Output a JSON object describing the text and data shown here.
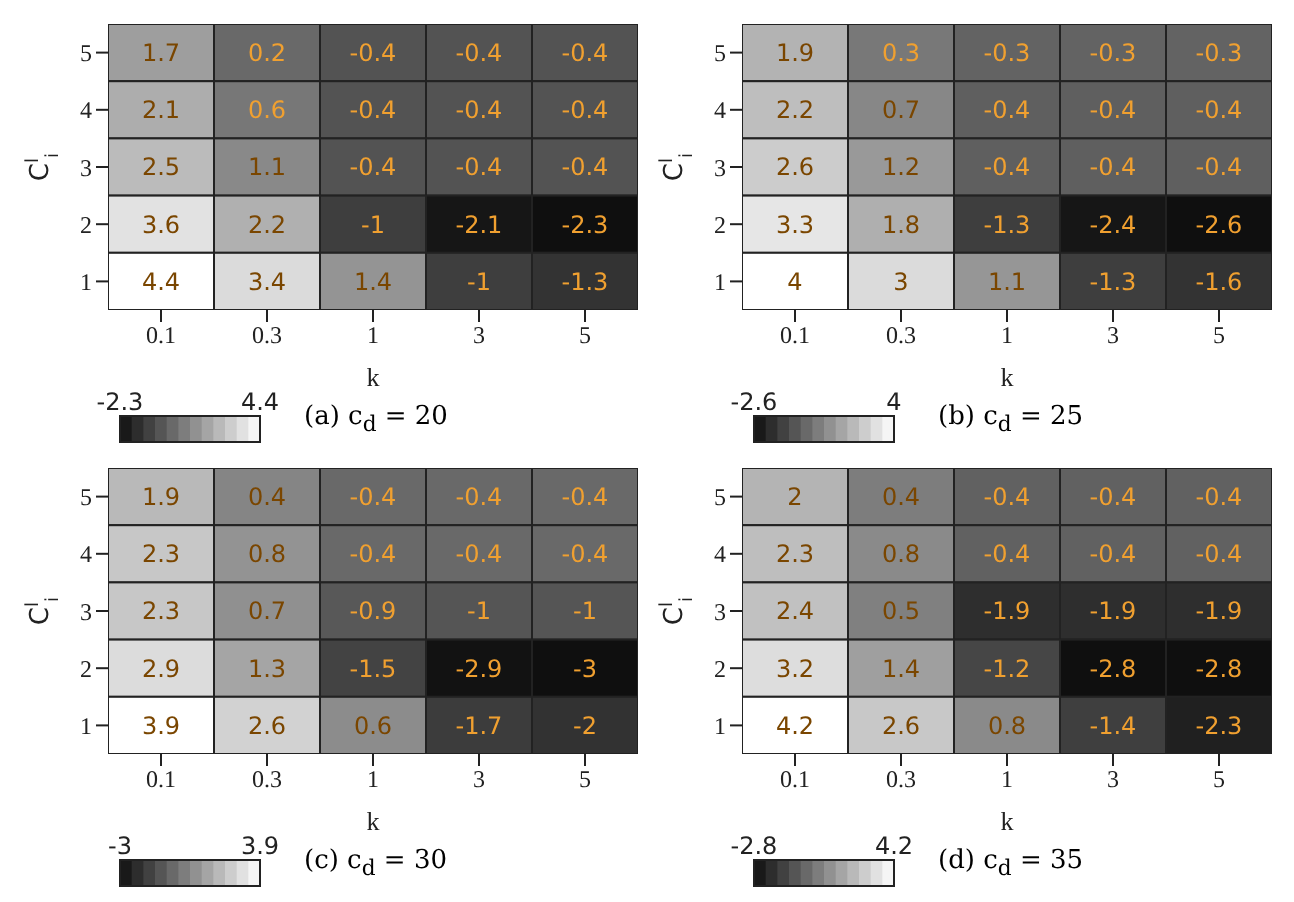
{
  "chart_data": [
    {
      "type": "heatmap",
      "title": "(a) c$_{d}$ = 20",
      "xlabel": "k",
      "ylabel": "C$^{l}$$_{i}$",
      "categories": [
        "0.1",
        "0.3",
        "1",
        "3",
        "5"
      ],
      "y_categories": [
        "5",
        "4",
        "3",
        "2",
        "1"
      ],
      "data_labels": true,
      "clim": [
        -2.3,
        4.4
      ],
      "cticks": [
        -2.3,
        4.4
      ],
      "cells": [
        [
          1.7,
          0.2,
          -0.4,
          -0.4,
          -0.4
        ],
        [
          2.1,
          0.6,
          -0.4,
          -0.4,
          -0.4
        ],
        [
          2.5,
          1.1,
          -0.4,
          -0.4,
          -0.4
        ],
        [
          3.6,
          2.2,
          -1,
          -2.1,
          -2.3
        ],
        [
          4.4,
          3.4,
          1.4,
          -1,
          -1.3
        ]
      ]
    },
    {
      "type": "heatmap",
      "title": "(b) c$_{d}$ = 25",
      "xlabel": "k",
      "ylabel": "C$^{l}$$_{i}$",
      "categories": [
        "0.1",
        "0.3",
        "1",
        "3",
        "5"
      ],
      "y_categories": [
        "5",
        "4",
        "3",
        "2",
        "1"
      ],
      "data_labels": true,
      "clim": [
        -2.6,
        4
      ],
      "cticks": [
        -2.6,
        4
      ],
      "cells": [
        [
          1.9,
          0.3,
          -0.3,
          -0.3,
          -0.3
        ],
        [
          2.2,
          0.7,
          -0.4,
          -0.4,
          -0.4
        ],
        [
          2.6,
          1.2,
          -0.4,
          -0.4,
          -0.4
        ],
        [
          3.3,
          1.8,
          -1.3,
          -2.4,
          -2.6
        ],
        [
          4,
          3,
          1.1,
          -1.3,
          -1.6
        ]
      ]
    },
    {
      "type": "heatmap",
      "title": "(c) c$_{d}$ = 30",
      "xlabel": "k",
      "ylabel": "C$^{l}$$_{i}$",
      "categories": [
        "0.1",
        "0.3",
        "1",
        "3",
        "5"
      ],
      "y_categories": [
        "5",
        "4",
        "3",
        "2",
        "1"
      ],
      "data_labels": true,
      "clim": [
        -3,
        3.9
      ],
      "cticks": [
        -3,
        3.9
      ],
      "cells": [
        [
          1.9,
          0.4,
          -0.4,
          -0.4,
          -0.4
        ],
        [
          2.3,
          0.8,
          -0.4,
          -0.4,
          -0.4
        ],
        [
          2.3,
          0.7,
          -0.9,
          -1,
          -1
        ],
        [
          2.9,
          1.3,
          -1.5,
          -2.9,
          -3
        ],
        [
          3.9,
          2.6,
          0.6,
          -1.7,
          -2
        ]
      ]
    },
    {
      "type": "heatmap",
      "title": "(d) c$_{d}$ = 35",
      "xlabel": "k",
      "ylabel": "C$^{l}$$_{i}$",
      "categories": [
        "0.1",
        "0.3",
        "1",
        "3",
        "5"
      ],
      "y_categories": [
        "5",
        "4",
        "3",
        "2",
        "1"
      ],
      "data_labels": true,
      "clim": [
        -2.8,
        4.2
      ],
      "cticks": [
        -2.8,
        4.2
      ],
      "cells": [
        [
          2,
          0.4,
          -0.4,
          -0.4,
          -0.4
        ],
        [
          2.3,
          0.8,
          -0.4,
          -0.4,
          -0.4
        ],
        [
          2.4,
          0.5,
          -1.9,
          -1.9,
          -1.9
        ],
        [
          3.2,
          1.4,
          -1.2,
          -2.8,
          -2.8
        ],
        [
          4.2,
          2.6,
          0.8,
          -1.4,
          -2.3
        ]
      ]
    }
  ]
}
